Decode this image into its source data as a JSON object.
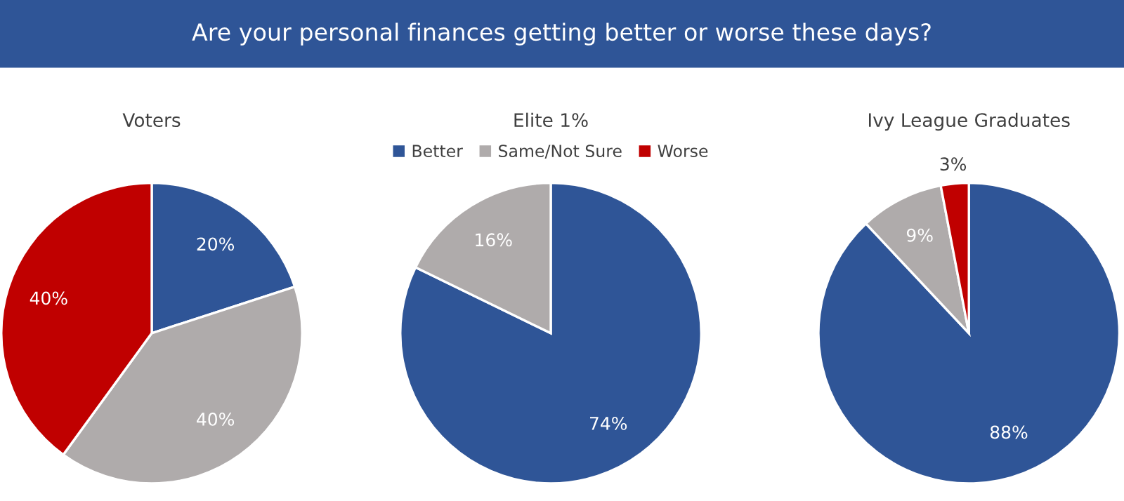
{
  "chart_data": [
    {
      "type": "pie",
      "title": "Voters",
      "annotations": [
        "Are your personal finances getting better or worse these days?"
      ],
      "categories": [
        null,
        null,
        null
      ],
      "values": [
        20,
        40,
        40
      ],
      "colors": [
        "#2f5597",
        "#afabab",
        "#c00000"
      ],
      "value_labels": [
        "20%",
        "40%",
        "40%"
      ]
    },
    {
      "type": "pie",
      "title": "Elite 1%",
      "categories": [
        "Better",
        "Same/Not Sure",
        "Worse"
      ],
      "values": [
        74,
        16,
        null
      ],
      "colors": [
        "#2f5597",
        "#afabab",
        "#c00000"
      ],
      "value_labels": [
        "74%",
        "16%",
        null
      ],
      "legend": "top"
    },
    {
      "type": "pie",
      "title": "Ivy League Graduates",
      "categories": [
        null,
        null,
        null
      ],
      "values": [
        88,
        9,
        3
      ],
      "colors": [
        "#2f5597",
        "#afabab",
        "#c00000"
      ],
      "value_labels": [
        "88%",
        "9%",
        "3%"
      ]
    }
  ]
}
